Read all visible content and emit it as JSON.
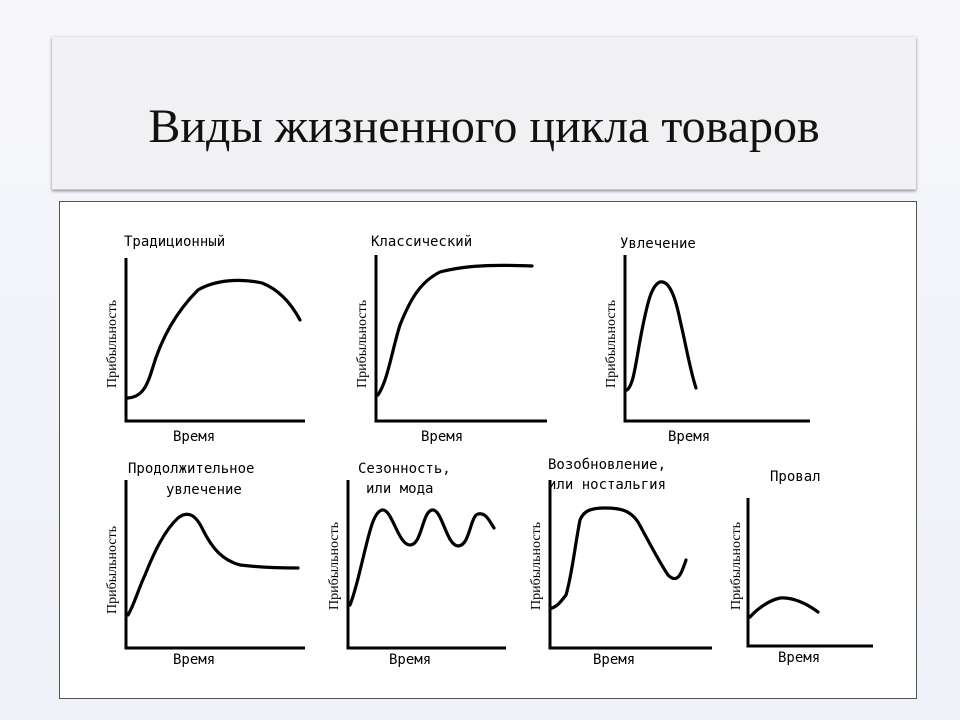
{
  "slide": {
    "title": "Виды жизненного цикла товаров"
  },
  "diagram": {
    "y_axis_label": "Прибыльность",
    "x_axis_label": "Время",
    "panels": [
      {
        "id": "traditional",
        "title_lines": [
          "Традиционный"
        ]
      },
      {
        "id": "classic",
        "title_lines": [
          "Классический"
        ]
      },
      {
        "id": "fad",
        "title_lines": [
          "Увлечение"
        ]
      },
      {
        "id": "extended-fad",
        "title_lines": [
          "Продолжительное",
          "увлечение"
        ]
      },
      {
        "id": "seasonal",
        "title_lines": [
          "Сезонность,",
          "или мода"
        ]
      },
      {
        "id": "revival",
        "title_lines": [
          "Возобновление,",
          "или ностальгия"
        ]
      },
      {
        "id": "bust",
        "title_lines": [
          "Провал"
        ]
      }
    ]
  },
  "colors": {
    "line": "#000000",
    "frame_background": "#ffffff",
    "title_box_background": "#f1f1f3"
  }
}
